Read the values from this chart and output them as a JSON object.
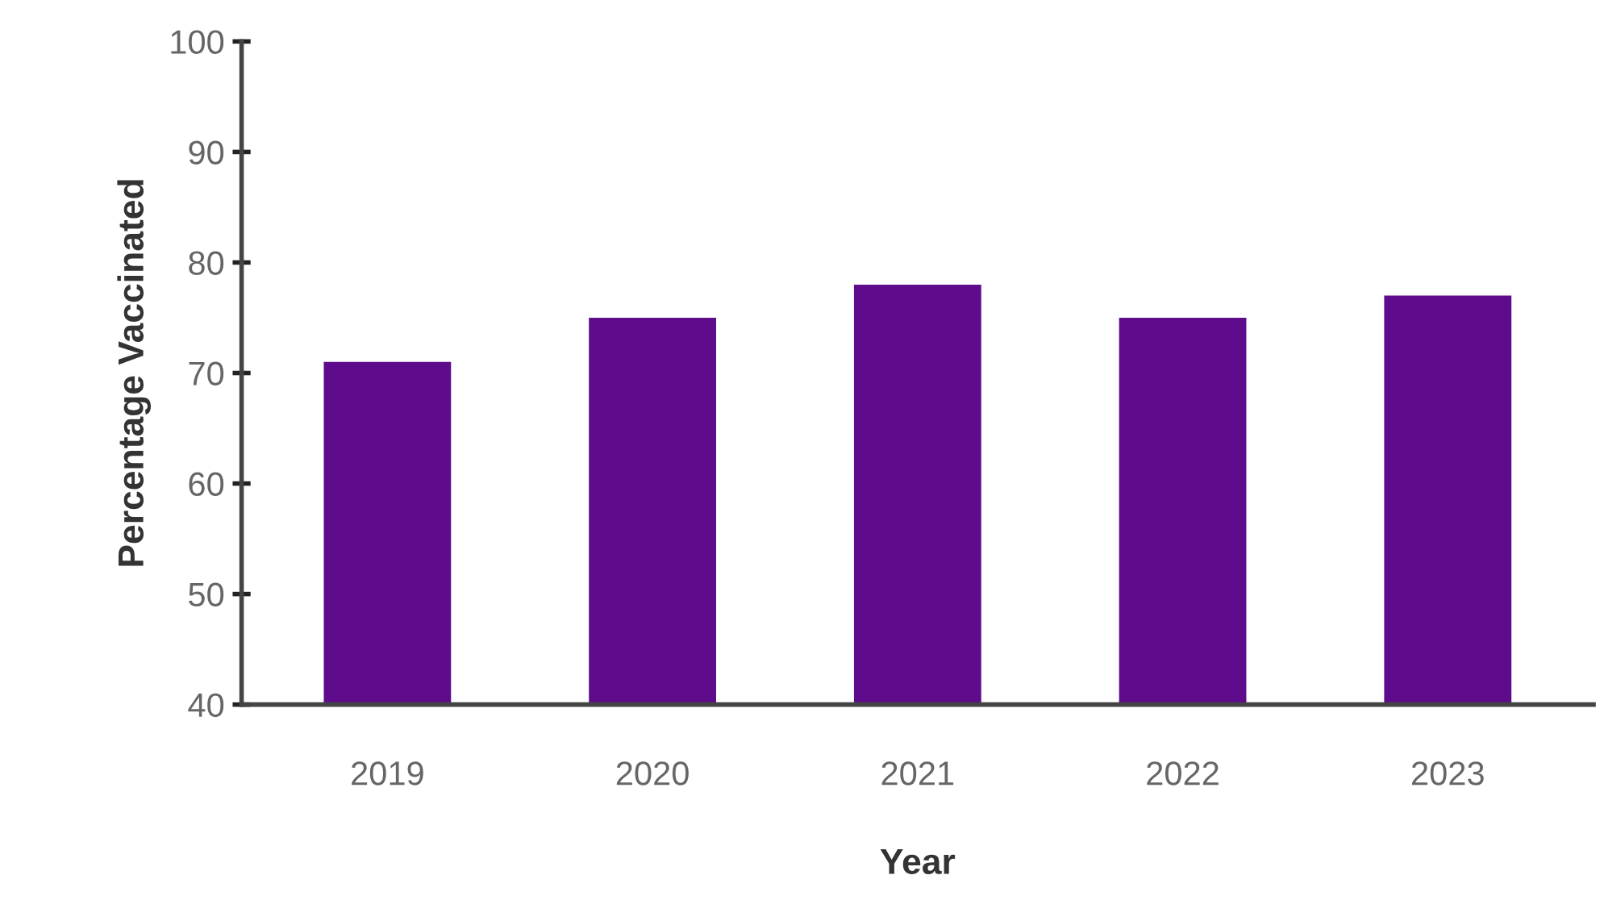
{
  "chart_data": {
    "type": "bar",
    "xlabel": "Year",
    "ylabel": "Percentage Vaccinated",
    "categories": [
      "2019",
      "2020",
      "2021",
      "2022",
      "2023"
    ],
    "values": [
      71,
      75,
      78,
      75,
      77
    ],
    "color": "#5e0b8c",
    "ylim": [
      40,
      100
    ],
    "yticks": [
      40,
      50,
      60,
      70,
      80,
      90,
      100
    ],
    "grid": false,
    "legend": false
  }
}
